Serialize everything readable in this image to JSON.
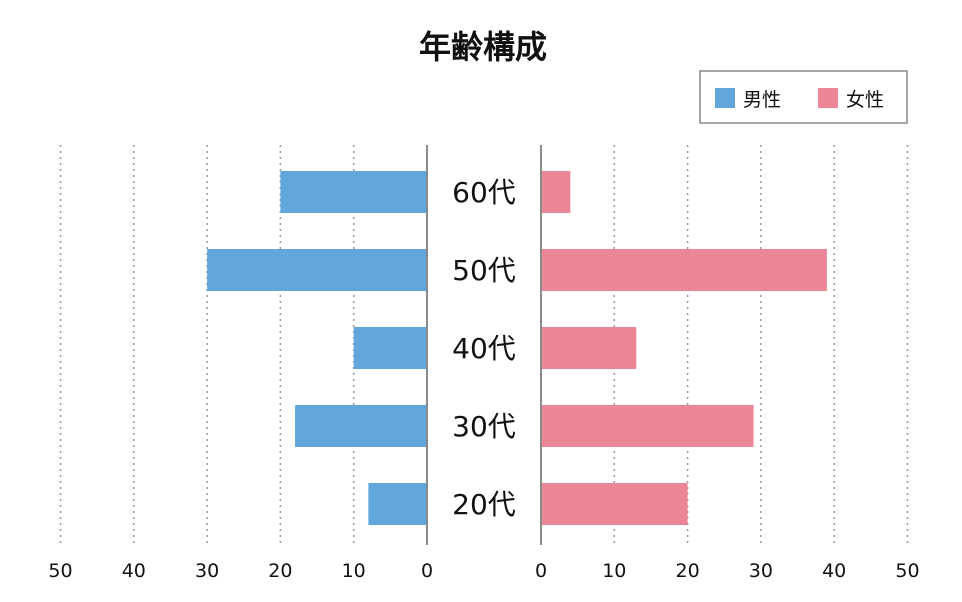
{
  "chart_data": {
    "type": "bar",
    "orientation": "horizontal",
    "layout": "population-pyramid",
    "title": "年齢構成",
    "categories": [
      "60代",
      "50代",
      "40代",
      "30代",
      "20代"
    ],
    "series": [
      {
        "name": "男性",
        "values": [
          20,
          30,
          10,
          18,
          8
        ],
        "color": "#62a7dc",
        "side": "left"
      },
      {
        "name": "女性",
        "values": [
          4,
          39,
          13,
          29,
          20
        ],
        "color": "#ec8697",
        "side": "right"
      }
    ],
    "xlim": [
      0,
      50
    ],
    "ticks_left": [
      "50",
      "40",
      "30",
      "20",
      "10",
      "0"
    ],
    "ticks_right": [
      "0",
      "10",
      "20",
      "30",
      "40",
      "50"
    ],
    "grid": "vertical-dotted",
    "legend_position": "top-right"
  }
}
